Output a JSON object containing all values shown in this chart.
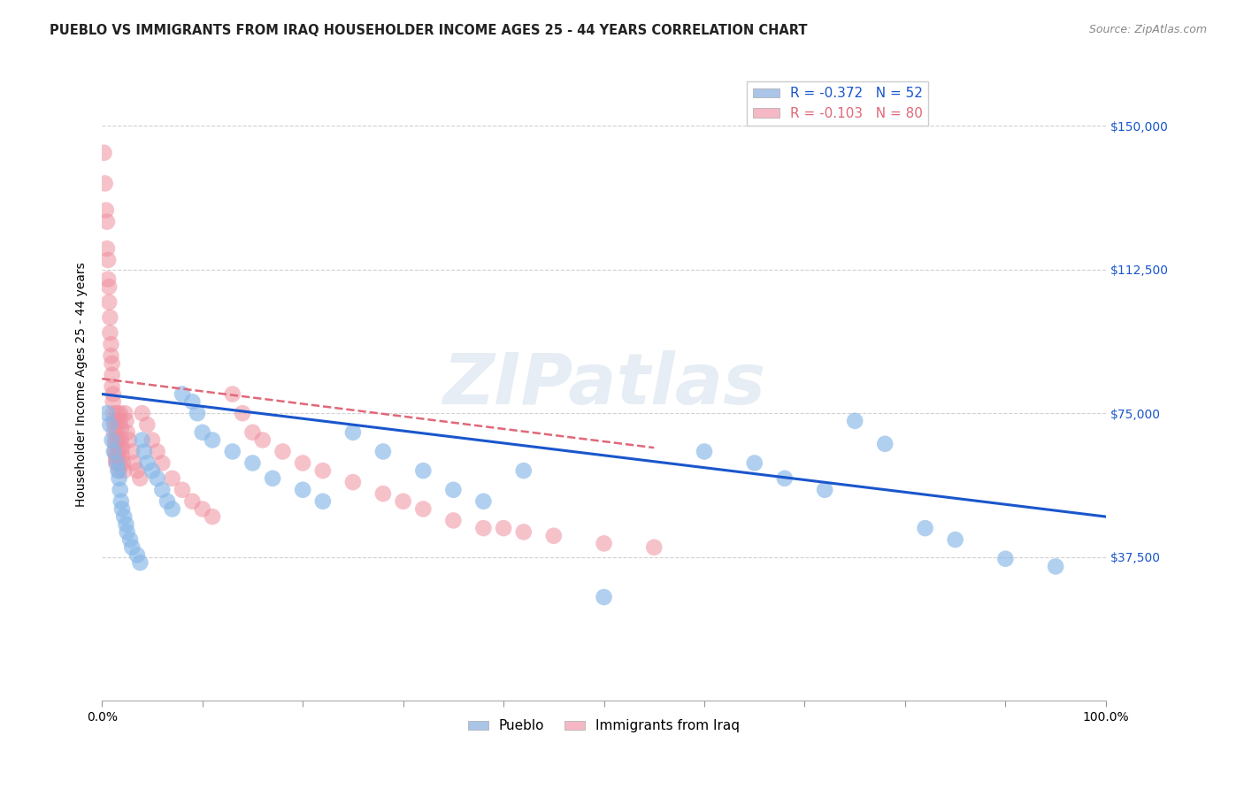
{
  "title": "PUEBLO VS IMMIGRANTS FROM IRAQ HOUSEHOLDER INCOME AGES 25 - 44 YEARS CORRELATION CHART",
  "source": "Source: ZipAtlas.com",
  "ylabel": "Householder Income Ages 25 - 44 years",
  "watermark_text": "ZIPatlas",
  "legend_entries": [
    {
      "label": "R = -0.372   N = 52",
      "color": "#aac5e8"
    },
    {
      "label": "R = -0.103   N = 80",
      "color": "#f5b8c4"
    }
  ],
  "legend_bottom": [
    "Pueblo",
    "Immigrants from Iraq"
  ],
  "pueblo_color": "#88b8e8",
  "iraq_color": "#f090a0",
  "pueblo_line_color": "#1a56cc",
  "iraq_line_color": "#e06878",
  "ytick_labels": [
    "$37,500",
    "$75,000",
    "$112,500",
    "$150,000"
  ],
  "ytick_values": [
    37500,
    75000,
    112500,
    150000
  ],
  "ymin": 0,
  "ymax": 165000,
  "xmin": 0.0,
  "xmax": 1.0,
  "pueblo_x": [
    0.005,
    0.008,
    0.01,
    0.012,
    0.015,
    0.016,
    0.017,
    0.018,
    0.019,
    0.02,
    0.022,
    0.024,
    0.025,
    0.028,
    0.03,
    0.035,
    0.038,
    0.04,
    0.042,
    0.045,
    0.05,
    0.055,
    0.06,
    0.065,
    0.07,
    0.08,
    0.09,
    0.095,
    0.1,
    0.11,
    0.13,
    0.15,
    0.17,
    0.2,
    0.22,
    0.25,
    0.28,
    0.32,
    0.35,
    0.38,
    0.42,
    0.5,
    0.6,
    0.65,
    0.68,
    0.72,
    0.75,
    0.78,
    0.82,
    0.85,
    0.9,
    0.95
  ],
  "pueblo_y": [
    75000,
    72000,
    68000,
    65000,
    62000,
    60000,
    58000,
    55000,
    52000,
    50000,
    48000,
    46000,
    44000,
    42000,
    40000,
    38000,
    36000,
    68000,
    65000,
    62000,
    60000,
    58000,
    55000,
    52000,
    50000,
    80000,
    78000,
    75000,
    70000,
    68000,
    65000,
    62000,
    58000,
    55000,
    52000,
    70000,
    65000,
    60000,
    55000,
    52000,
    60000,
    27000,
    65000,
    62000,
    58000,
    55000,
    73000,
    67000,
    45000,
    42000,
    37000,
    35000
  ],
  "iraq_x": [
    0.002,
    0.003,
    0.004,
    0.005,
    0.005,
    0.006,
    0.006,
    0.007,
    0.007,
    0.008,
    0.008,
    0.009,
    0.009,
    0.01,
    0.01,
    0.01,
    0.011,
    0.011,
    0.011,
    0.012,
    0.012,
    0.012,
    0.013,
    0.013,
    0.013,
    0.014,
    0.014,
    0.014,
    0.015,
    0.015,
    0.015,
    0.016,
    0.016,
    0.016,
    0.017,
    0.017,
    0.018,
    0.018,
    0.019,
    0.019,
    0.02,
    0.02,
    0.021,
    0.022,
    0.023,
    0.024,
    0.025,
    0.027,
    0.03,
    0.032,
    0.035,
    0.038,
    0.04,
    0.045,
    0.05,
    0.055,
    0.06,
    0.07,
    0.08,
    0.09,
    0.1,
    0.11,
    0.13,
    0.14,
    0.15,
    0.16,
    0.18,
    0.2,
    0.22,
    0.25,
    0.28,
    0.3,
    0.32,
    0.35,
    0.38,
    0.4,
    0.42,
    0.45,
    0.5,
    0.55
  ],
  "iraq_y": [
    143000,
    135000,
    128000,
    125000,
    118000,
    115000,
    110000,
    108000,
    104000,
    100000,
    96000,
    93000,
    90000,
    88000,
    85000,
    82000,
    80000,
    78000,
    75000,
    73000,
    72000,
    70000,
    68000,
    67000,
    65000,
    64000,
    63000,
    62000,
    75000,
    73000,
    70000,
    68000,
    66000,
    64000,
    62000,
    60000,
    75000,
    73000,
    71000,
    68000,
    66000,
    64000,
    62000,
    60000,
    75000,
    73000,
    70000,
    68000,
    65000,
    62000,
    60000,
    58000,
    75000,
    72000,
    68000,
    65000,
    62000,
    58000,
    55000,
    52000,
    50000,
    48000,
    80000,
    75000,
    70000,
    68000,
    65000,
    62000,
    60000,
    57000,
    54000,
    52000,
    50000,
    47000,
    45000,
    45000,
    44000,
    43000,
    41000,
    40000
  ]
}
